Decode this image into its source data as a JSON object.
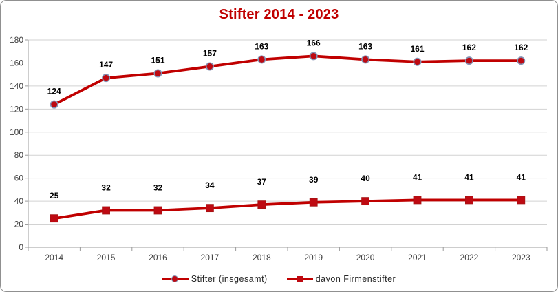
{
  "title": "Stifter 2014 - 2023",
  "colors": {
    "title": "#C00000",
    "series_line": "#C00000",
    "circle_marker_fill": "#BE0A12",
    "circle_marker_border": "#8391B3",
    "square_marker_fill": "#BE0A12",
    "square_marker_border": "#A31414",
    "gridline": "#D2D2D2",
    "axis_line": "#9B9B9B",
    "tick_label": "#3F3F3F",
    "data_label": "#000000",
    "chart_border": "#909090"
  },
  "chart_data": {
    "type": "line",
    "title": "Stifter 2014 - 2023",
    "categories": [
      "2014",
      "2015",
      "2016",
      "2017",
      "2018",
      "2019",
      "2020",
      "2021",
      "2022",
      "2023"
    ],
    "series": [
      {
        "name": "Stifter (insgesamt)",
        "marker": "circle",
        "values": [
          124,
          147,
          151,
          157,
          163,
          166,
          163,
          161,
          162,
          162
        ]
      },
      {
        "name": "davon Firmenstifter",
        "marker": "square",
        "values": [
          25,
          32,
          32,
          34,
          37,
          39,
          40,
          41,
          41,
          41
        ]
      }
    ],
    "xlabel": "",
    "ylabel": "",
    "ylim": [
      0,
      180
    ],
    "ytick_step": 20,
    "grid": true,
    "data_labels": true,
    "legend_position": "bottom"
  }
}
